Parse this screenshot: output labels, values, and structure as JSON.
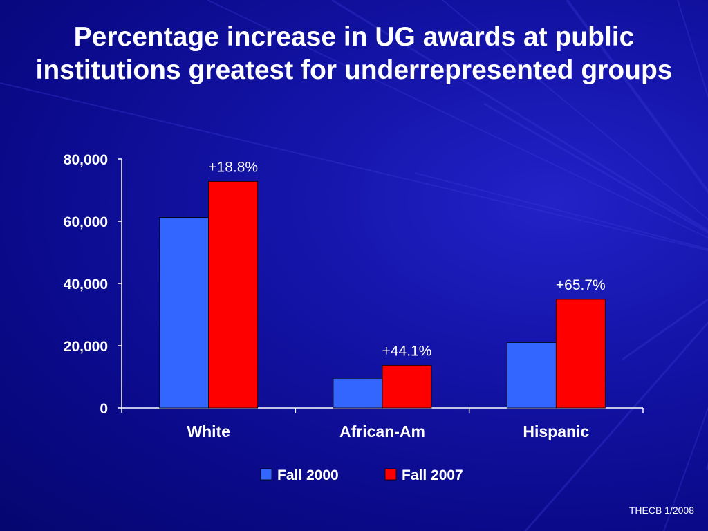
{
  "slide": {
    "title_line1": "Percentage increase in UG awards at public",
    "title_line2": "institutions greatest for underrepresented groups",
    "source": "THECB 1/2008"
  },
  "colors": {
    "background": "#0e0e96",
    "series_fall_2000": "#3366ff",
    "series_fall_2007": "#ff0000",
    "axis": "#ffffff",
    "text": "#ffffff"
  },
  "chart_data": {
    "type": "bar",
    "title": "",
    "xlabel": "",
    "ylabel": "",
    "ylim": [
      0,
      80000
    ],
    "yticks": [
      0,
      20000,
      40000,
      60000,
      80000
    ],
    "ytick_labels": [
      "0",
      "20,000",
      "40,000",
      "60,000",
      "80,000"
    ],
    "grid": false,
    "legend_position": "bottom",
    "categories": [
      "White",
      "African-Am",
      "Hispanic"
    ],
    "series": [
      {
        "name": "Fall 2000",
        "color": "#3366ff",
        "values": [
          61200,
          9500,
          21000
        ]
      },
      {
        "name": "Fall 2007",
        "color": "#ff0000",
        "values": [
          72800,
          13700,
          34900
        ]
      }
    ],
    "annotations": [
      "+18.8%",
      "+44.1%",
      "+65.7%"
    ]
  }
}
